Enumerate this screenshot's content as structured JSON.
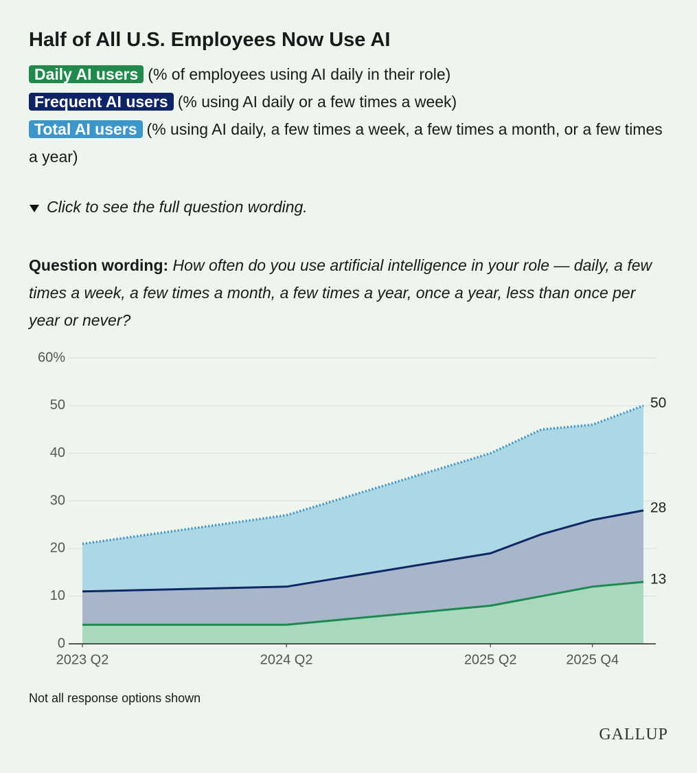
{
  "header": {
    "title": "Half of All U.S. Employees Now Use AI"
  },
  "toggle": "Click to see the full question wording.",
  "question": {
    "label": "Question wording:",
    "text": "How often do you use artificial intelligence in your role — daily, a few times a week, a few times a month, a few times a year, once a year, less than once per year or never?"
  },
  "chart_data": {
    "type": "area",
    "x": [
      2023.25,
      2024.25,
      2025.25,
      2025.5,
      2025.75,
      2026.0
    ],
    "xlim": [
      2023.25,
      2026.0
    ],
    "xticks": [
      {
        "value": 2023.25,
        "label": "2023 Q2"
      },
      {
        "value": 2024.25,
        "label": "2024 Q2"
      },
      {
        "value": 2025.25,
        "label": "2025 Q2"
      },
      {
        "value": 2025.75,
        "label": "2025 Q4"
      }
    ],
    "ylim": [
      0,
      60
    ],
    "yticks": [
      0,
      10,
      20,
      30,
      40,
      50,
      {
        "value": 60,
        "label": "60%"
      }
    ],
    "grid": true,
    "series": [
      {
        "name": "Total AI users",
        "description": "(% using AI daily, a few times a week, a few times a month, or a few times a year)",
        "color": "#3b8fc3",
        "fill": "#acd8e5",
        "chip": "#3d96c9",
        "dash": true,
        "values": [
          21,
          27,
          40,
          45,
          46,
          50
        ]
      },
      {
        "name": "Frequent AI users",
        "description": "(% using AI daily or a few times a week)",
        "color": "#0e2765",
        "fill": "#a7b6c9",
        "chip": "#0f2466",
        "dash": false,
        "values": [
          11,
          12,
          19,
          23,
          26,
          28
        ]
      },
      {
        "name": "Daily AI users",
        "description": "(% of employees using AI daily in their role)",
        "color": "#1c8a50",
        "fill": "#a8d9bd",
        "chip": "#1f8a4c",
        "dash": false,
        "values": [
          4,
          4,
          8,
          10,
          12,
          13
        ]
      }
    ],
    "legend_order": [
      2,
      1,
      0
    ]
  },
  "note": "Not all response options shown",
  "brand": "GALLUP"
}
